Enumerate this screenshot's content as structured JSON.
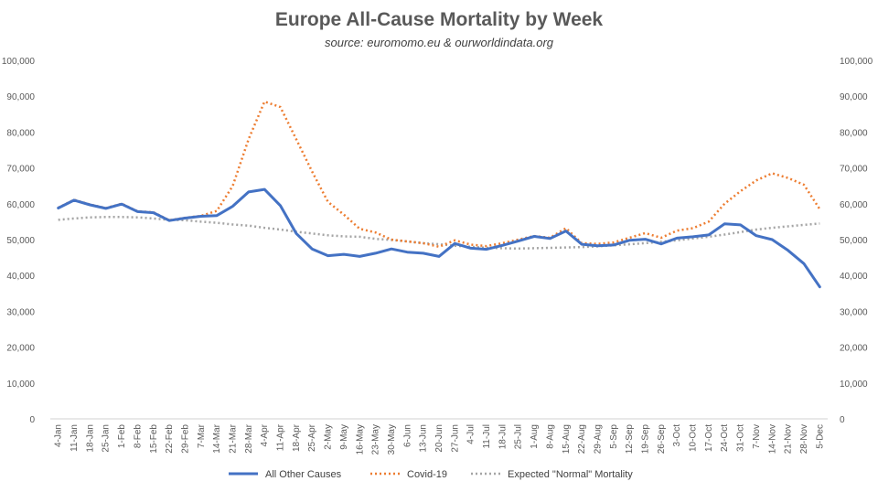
{
  "chart_data": {
    "type": "line",
    "title": "Europe All-Cause Mortality by Week",
    "subtitle": "source: euromomo.eu & ourworldindata.org",
    "xlabel": "",
    "ylabel": "",
    "ylim": [
      0,
      100000
    ],
    "yticks": [
      "0",
      "10,000",
      "20,000",
      "30,000",
      "40,000",
      "50,000",
      "60,000",
      "70,000",
      "80,000",
      "90,000",
      "100,000"
    ],
    "secondary_yticks": [
      "0",
      "10,000",
      "20,000",
      "30,000",
      "40,000",
      "50,000",
      "60,000",
      "70,000",
      "80,000",
      "90,000",
      "100,000"
    ],
    "grid": false,
    "legend_position": "bottom",
    "categories": [
      "4-Jan",
      "11-Jan",
      "18-Jan",
      "25-Jan",
      "1-Feb",
      "8-Feb",
      "15-Feb",
      "22-Feb",
      "29-Feb",
      "7-Mar",
      "14-Mar",
      "21-Mar",
      "28-Mar",
      "4-Apr",
      "11-Apr",
      "18-Apr",
      "25-Apr",
      "2-May",
      "9-May",
      "16-May",
      "23-May",
      "30-May",
      "6-Jun",
      "13-Jun",
      "20-Jun",
      "27-Jun",
      "4-Jul",
      "11-Jul",
      "18-Jul",
      "25-Jul",
      "1-Aug",
      "8-Aug",
      "15-Aug",
      "22-Aug",
      "29-Aug",
      "5-Sep",
      "12-Sep",
      "19-Sep",
      "26-Sep",
      "3-Oct",
      "10-Oct",
      "17-Oct",
      "24-Oct",
      "31-Oct",
      "7-Nov",
      "14-Nov",
      "21-Nov",
      "28-Nov",
      "5-Dec"
    ],
    "series": [
      {
        "name": "All Other Causes",
        "color": "#4472C4",
        "style": "solid",
        "values": [
          58800,
          61000,
          59700,
          58700,
          59900,
          57800,
          57500,
          55300,
          56000,
          56500,
          56700,
          59300,
          63300,
          64000,
          59500,
          51700,
          47400,
          45500,
          45900,
          45300,
          46200,
          47400,
          46500,
          46200,
          45300,
          48900,
          47600,
          47300,
          48400,
          49600,
          50900,
          50300,
          52400,
          48700,
          48300,
          48500,
          49800,
          50100,
          48800,
          50400,
          50800,
          51300,
          54400,
          54100,
          51100,
          50000,
          47000,
          43300,
          36800
        ]
      },
      {
        "name": "Covid-19",
        "color": "#ED7D31",
        "style": "dotted",
        "values": [
          58900,
          61100,
          59800,
          58800,
          60000,
          57900,
          57600,
          55400,
          56100,
          56600,
          58000,
          65000,
          78000,
          88500,
          87000,
          78000,
          69000,
          60500,
          57000,
          53000,
          52000,
          50000,
          49500,
          49000,
          48000,
          49800,
          48600,
          48200,
          49000,
          50000,
          51000,
          50500,
          53200,
          49000,
          48800,
          49200,
          50500,
          51800,
          50500,
          52500,
          53200,
          55000,
          60000,
          63500,
          66500,
          68500,
          67200,
          65300,
          58500
        ]
      },
      {
        "name": "Expected \"Normal\" Mortality",
        "color": "#A5A5A5",
        "style": "dotted",
        "values": [
          55500,
          55900,
          56200,
          56300,
          56300,
          56200,
          55900,
          55500,
          55400,
          55000,
          54700,
          54200,
          53900,
          53300,
          52800,
          52200,
          51700,
          51200,
          50900,
          50800,
          50200,
          49900,
          49500,
          49000,
          48700,
          48300,
          48000,
          47700,
          47600,
          47500,
          47600,
          47700,
          47800,
          47900,
          48100,
          48400,
          48700,
          49000,
          49400,
          49800,
          50300,
          50800,
          51400,
          52100,
          52800,
          53300,
          53700,
          54100,
          54500
        ]
      }
    ]
  }
}
